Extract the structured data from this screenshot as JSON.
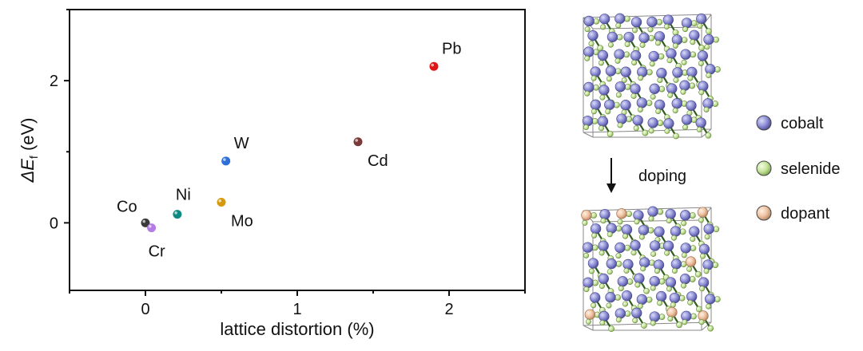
{
  "chart_data": {
    "type": "scatter",
    "xlabel": "lattice distortion (%)",
    "ylabel_main": "ΔE",
    "ylabel_sub": "f",
    "ylabel_unit": " (eV)",
    "xlim": [
      -0.5,
      2.5
    ],
    "ylim": [
      -0.95,
      3.0
    ],
    "xticks": [
      0,
      1,
      2
    ],
    "yticks": [
      0,
      2
    ],
    "grid": false,
    "points": [
      {
        "label": "Co",
        "x": 0.0,
        "y": 0.0,
        "color": "#3a3a3a",
        "label_pos": "upper-left"
      },
      {
        "label": "Cr",
        "x": 0.04,
        "y": -0.07,
        "color": "#b57be6",
        "label_pos": "lower-left"
      },
      {
        "label": "Ni",
        "x": 0.21,
        "y": 0.12,
        "color": "#0f8a80",
        "label_pos": "upper"
      },
      {
        "label": "Mo",
        "x": 0.5,
        "y": 0.29,
        "color": "#d49a0c",
        "label_pos": "lower-right"
      },
      {
        "label": "W",
        "x": 0.53,
        "y": 0.87,
        "color": "#2e6fd9",
        "label_pos": "upper-right"
      },
      {
        "label": "Cd",
        "x": 1.4,
        "y": 1.14,
        "color": "#7a3a3a",
        "label_pos": "lower-right"
      },
      {
        "label": "Pb",
        "x": 1.9,
        "y": 2.2,
        "color": "#e01616",
        "label_pos": "upper-right"
      }
    ]
  },
  "schematic": {
    "arrow_label": "doping",
    "legend": [
      {
        "label": "cobalt",
        "color": "#8d8ed6"
      },
      {
        "label": "selenide",
        "color": "#c5e59a"
      },
      {
        "label": "dopant",
        "color": "#efc2a2"
      }
    ]
  }
}
